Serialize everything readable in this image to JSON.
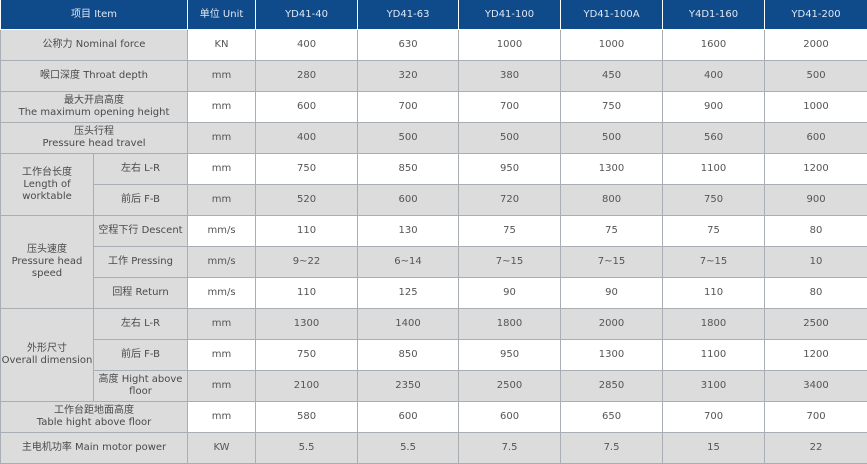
{
  "header": {
    "item": "项目  Item",
    "unit": "单位 Unit",
    "models": [
      "YD41-40",
      "YD41-63",
      "YD41-100",
      "YD41-100A",
      "Y4D1-160",
      "YD41-200"
    ]
  },
  "colors": {
    "header_bg": "#0f4a8a",
    "label_bg": "#dcdcdc",
    "alt_row_bg": "#dcdcdc"
  },
  "rows": [
    {
      "label": "公称力  Nominal force",
      "unit": "KN",
      "values": [
        "400",
        "630",
        "1000",
        "1000",
        "1600",
        "2000"
      ]
    },
    {
      "label": "喉口深度 Throat depth",
      "unit": "mm",
      "values": [
        "280",
        "320",
        "380",
        "450",
        "400",
        "500"
      ]
    },
    {
      "label": "最大开启高度\nThe maximum opening height",
      "unit": "mm",
      "values": [
        "600",
        "700",
        "700",
        "750",
        "900",
        "1000"
      ]
    },
    {
      "label": "压头行程\nPressure head travel",
      "unit": "mm",
      "values": [
        "400",
        "500",
        "500",
        "500",
        "560",
        "600"
      ]
    },
    {
      "group": "工作台长度\nLength of\nworktable",
      "label": "左右 L-R",
      "unit": "mm",
      "values": [
        "750",
        "850",
        "950",
        "1300",
        "1100",
        "1200"
      ]
    },
    {
      "label": "前后 F-B",
      "unit": "mm",
      "values": [
        "520",
        "600",
        "720",
        "800",
        "750",
        "900"
      ]
    },
    {
      "group": "压头速度\nPressure head\nspeed",
      "label": "空程下行 Descent",
      "unit": "mm/s",
      "values": [
        "110",
        "130",
        "75",
        "75",
        "75",
        "80"
      ]
    },
    {
      "label": "工作 Pressing",
      "unit": "mm/s",
      "values": [
        "9~22",
        "6~14",
        "7~15",
        "7~15",
        "7~15",
        "10"
      ]
    },
    {
      "label": "回程 Return",
      "unit": "mm/s",
      "values": [
        "110",
        "125",
        "90",
        "90",
        "110",
        "80"
      ]
    },
    {
      "group": "外形尺寸\nOverall dimension",
      "label": "左右 L-R",
      "unit": "mm",
      "values": [
        "1300",
        "1400",
        "1800",
        "2000",
        "1800",
        "2500"
      ]
    },
    {
      "label": "前后 F-B",
      "unit": "mm",
      "values": [
        "750",
        "850",
        "950",
        "1300",
        "1100",
        "1200"
      ]
    },
    {
      "label": "高度 Hight above\nfloor",
      "unit": "mm",
      "values": [
        "2100",
        "2350",
        "2500",
        "2850",
        "3100",
        "3400"
      ]
    },
    {
      "label": "工作台距地面高度\nTable hight above floor",
      "unit": "mm",
      "values": [
        "580",
        "600",
        "600",
        "650",
        "700",
        "700"
      ]
    },
    {
      "label": "主电机功率   Main motor power",
      "unit": "KW",
      "values": [
        "5.5",
        "5.5",
        "7.5",
        "7.5",
        "15",
        "22"
      ]
    }
  ]
}
